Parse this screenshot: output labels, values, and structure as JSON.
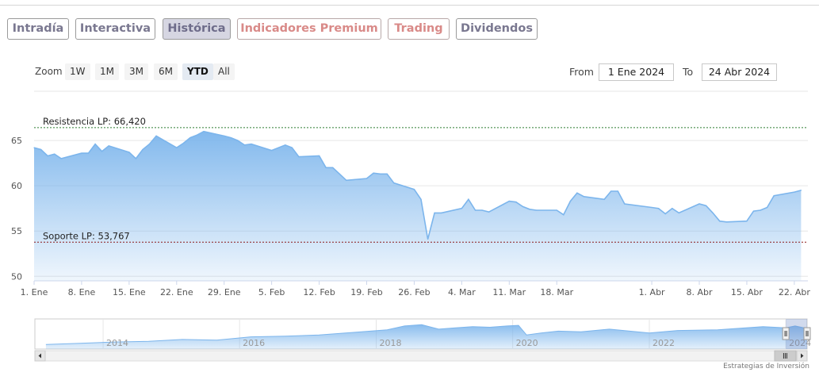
{
  "tabs": [
    {
      "label": "Intradía",
      "style": "normal"
    },
    {
      "label": "Interactiva",
      "style": "normal"
    },
    {
      "label": "Histórica",
      "style": "active"
    },
    {
      "label": "Indicadores Premium",
      "style": "premium"
    },
    {
      "label": "Trading",
      "style": "premium"
    },
    {
      "label": "Dividendos",
      "style": "normal"
    }
  ],
  "zoom": {
    "label": "Zoom",
    "options": [
      "1W",
      "1M",
      "3M",
      "6M",
      "YTD",
      "All"
    ],
    "selected": "YTD"
  },
  "range": {
    "from_label": "From",
    "from_value": "1 Ene 2024",
    "to_label": "To",
    "to_value": "24 Abr 2024"
  },
  "credit": "Estrategias de Inversión",
  "colors": {
    "line": "#7cb5ec",
    "area_top": "#7cb5ec",
    "resistance": "#2e7d32",
    "support": "#8b1a1a"
  },
  "chart_data": [
    {
      "type": "area",
      "xlabel": "",
      "ylabel": "",
      "ylim": [
        49.5,
        70
      ],
      "y_ticks": [
        50,
        55,
        60,
        65
      ],
      "grid": true,
      "x_start": "2024-01-01",
      "x_end": "2024-04-24",
      "x_ticks": [
        {
          "date": "2024-01-01",
          "label": "1. Ene"
        },
        {
          "date": "2024-01-08",
          "label": "8. Ene"
        },
        {
          "date": "2024-01-15",
          "label": "15. Ene"
        },
        {
          "date": "2024-01-22",
          "label": "22. Ene"
        },
        {
          "date": "2024-01-29",
          "label": "29. Ene"
        },
        {
          "date": "2024-02-05",
          "label": "5. Feb"
        },
        {
          "date": "2024-02-12",
          "label": "12. Feb"
        },
        {
          "date": "2024-02-19",
          "label": "19. Feb"
        },
        {
          "date": "2024-02-26",
          "label": "26. Feb"
        },
        {
          "date": "2024-03-04",
          "label": "4. Mar"
        },
        {
          "date": "2024-03-11",
          "label": "11. Mar"
        },
        {
          "date": "2024-03-18",
          "label": "18. Mar"
        },
        {
          "date": "2024-04-01",
          "label": "1. Abr"
        },
        {
          "date": "2024-04-08",
          "label": "8. Abr"
        },
        {
          "date": "2024-04-15",
          "label": "15. Abr"
        },
        {
          "date": "2024-04-22",
          "label": "22. Abr"
        }
      ],
      "series": [
        {
          "points": [
            [
              "2024-01-01",
              64.2
            ],
            [
              "2024-01-02",
              64.0
            ],
            [
              "2024-01-03",
              63.3
            ],
            [
              "2024-01-04",
              63.5
            ],
            [
              "2024-01-05",
              63.0
            ],
            [
              "2024-01-08",
              63.6
            ],
            [
              "2024-01-09",
              63.6
            ],
            [
              "2024-01-10",
              64.6
            ],
            [
              "2024-01-11",
              63.8
            ],
            [
              "2024-01-12",
              64.4
            ],
            [
              "2024-01-15",
              63.7
            ],
            [
              "2024-01-16",
              63.0
            ],
            [
              "2024-01-17",
              64.0
            ],
            [
              "2024-01-18",
              64.6
            ],
            [
              "2024-01-19",
              65.5
            ],
            [
              "2024-01-22",
              64.2
            ],
            [
              "2024-01-23",
              64.7
            ],
            [
              "2024-01-24",
              65.3
            ],
            [
              "2024-01-25",
              65.6
            ],
            [
              "2024-01-26",
              66.0
            ],
            [
              "2024-01-29",
              65.5
            ],
            [
              "2024-01-30",
              65.3
            ],
            [
              "2024-01-31",
              65.0
            ],
            [
              "2024-02-01",
              64.5
            ],
            [
              "2024-02-02",
              64.6
            ],
            [
              "2024-02-05",
              63.9
            ],
            [
              "2024-02-06",
              64.2
            ],
            [
              "2024-02-07",
              64.5
            ],
            [
              "2024-02-08",
              64.2
            ],
            [
              "2024-02-09",
              63.2
            ],
            [
              "2024-02-12",
              63.3
            ],
            [
              "2024-02-13",
              62.0
            ],
            [
              "2024-02-14",
              62.0
            ],
            [
              "2024-02-15",
              61.3
            ],
            [
              "2024-02-16",
              60.6
            ],
            [
              "2024-02-19",
              60.8
            ],
            [
              "2024-02-20",
              61.4
            ],
            [
              "2024-02-21",
              61.3
            ],
            [
              "2024-02-22",
              61.3
            ],
            [
              "2024-02-23",
              60.3
            ],
            [
              "2024-02-26",
              59.6
            ],
            [
              "2024-02-27",
              58.5
            ],
            [
              "2024-02-28",
              54.1
            ],
            [
              "2024-02-29",
              57.0
            ],
            [
              "2024-03-01",
              57.0
            ],
            [
              "2024-03-04",
              57.5
            ],
            [
              "2024-03-05",
              58.5
            ],
            [
              "2024-03-06",
              57.3
            ],
            [
              "2024-03-07",
              57.3
            ],
            [
              "2024-03-08",
              57.1
            ],
            [
              "2024-03-11",
              58.3
            ],
            [
              "2024-03-12",
              58.2
            ],
            [
              "2024-03-13",
              57.7
            ],
            [
              "2024-03-14",
              57.4
            ],
            [
              "2024-03-15",
              57.3
            ],
            [
              "2024-03-18",
              57.3
            ],
            [
              "2024-03-19",
              56.8
            ],
            [
              "2024-03-20",
              58.3
            ],
            [
              "2024-03-21",
              59.2
            ],
            [
              "2024-03-22",
              58.8
            ],
            [
              "2024-03-25",
              58.5
            ],
            [
              "2024-03-26",
              59.4
            ],
            [
              "2024-03-27",
              59.4
            ],
            [
              "2024-03-28",
              58.0
            ],
            [
              "2024-04-01",
              57.6
            ],
            [
              "2024-04-02",
              57.5
            ],
            [
              "2024-04-03",
              56.9
            ],
            [
              "2024-04-04",
              57.5
            ],
            [
              "2024-04-05",
              57.0
            ],
            [
              "2024-04-08",
              58.0
            ],
            [
              "2024-04-09",
              57.8
            ],
            [
              "2024-04-10",
              57.0
            ],
            [
              "2024-04-11",
              56.1
            ],
            [
              "2024-04-12",
              56.0
            ],
            [
              "2024-04-15",
              56.1
            ],
            [
              "2024-04-16",
              57.2
            ],
            [
              "2024-04-17",
              57.3
            ],
            [
              "2024-04-18",
              57.6
            ],
            [
              "2024-04-19",
              58.9
            ],
            [
              "2024-04-22",
              59.3
            ],
            [
              "2024-04-23",
              59.5
            ]
          ]
        }
      ],
      "lines": [
        {
          "label": "Resistencia LP: 66,420",
          "value": 66.42,
          "kind": "resistance"
        },
        {
          "label": "Soporte LP: 53,767",
          "value": 53.767,
          "kind": "support"
        }
      ]
    },
    {
      "type": "area",
      "role": "navigator",
      "x_start": "2013-01-01",
      "x_end": "2024-04-24",
      "ylim": [
        25,
        72
      ],
      "x_ticks": [
        {
          "date": "2014-01-01",
          "label": "2014"
        },
        {
          "date": "2016-01-01",
          "label": "2016"
        },
        {
          "date": "2018-01-01",
          "label": "2018"
        },
        {
          "date": "2020-01-01",
          "label": "2020"
        },
        {
          "date": "2022-01-01",
          "label": "2022"
        },
        {
          "date": "2024-01-01",
          "label": "2024"
        }
      ],
      "selection": [
        "2024-01-01",
        "2024-04-24"
      ],
      "series": [
        {
          "points": [
            [
              "2013-03-01",
              32
            ],
            [
              "2013-09-01",
              34
            ],
            [
              "2014-03-01",
              36
            ],
            [
              "2014-09-01",
              37
            ],
            [
              "2015-03-01",
              40
            ],
            [
              "2015-09-01",
              39
            ],
            [
              "2016-03-01",
              44
            ],
            [
              "2016-09-01",
              45
            ],
            [
              "2017-03-01",
              47
            ],
            [
              "2017-09-01",
              51
            ],
            [
              "2018-03-01",
              55
            ],
            [
              "2018-06-01",
              61
            ],
            [
              "2018-09-01",
              63
            ],
            [
              "2018-12-01",
              56
            ],
            [
              "2019-03-01",
              58
            ],
            [
              "2019-06-01",
              60
            ],
            [
              "2019-09-01",
              59
            ],
            [
              "2019-12-01",
              61
            ],
            [
              "2020-02-01",
              62
            ],
            [
              "2020-03-15",
              47
            ],
            [
              "2020-06-01",
              50
            ],
            [
              "2020-09-01",
              53
            ],
            [
              "2021-01-01",
              52
            ],
            [
              "2021-06-01",
              56
            ],
            [
              "2022-01-01",
              50
            ],
            [
              "2022-06-01",
              54
            ],
            [
              "2023-01-01",
              55
            ],
            [
              "2023-06-01",
              58
            ],
            [
              "2023-09-01",
              60
            ],
            [
              "2024-01-01",
              58
            ],
            [
              "2024-02-20",
              61
            ],
            [
              "2024-04-23",
              57
            ]
          ]
        }
      ]
    }
  ]
}
